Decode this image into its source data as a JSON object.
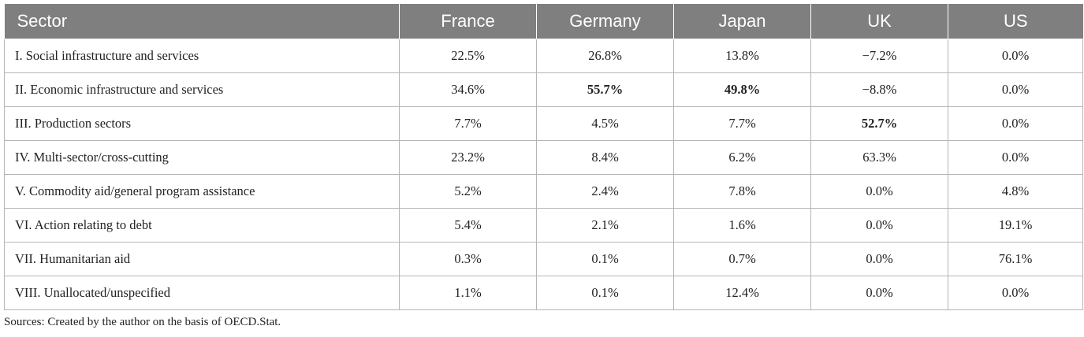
{
  "table": {
    "headers": [
      "Sector",
      "France",
      "Germany",
      "Japan",
      "UK",
      "US"
    ],
    "rows": [
      {
        "sector": "I. Social infrastructure and services",
        "values": [
          "22.5%",
          "26.8%",
          "13.8%",
          "−7.2%",
          "0.0%"
        ],
        "bold": []
      },
      {
        "sector": "II. Economic infrastructure and services",
        "values": [
          "34.6%",
          "55.7%",
          "49.8%",
          "−8.8%",
          "0.0%"
        ],
        "bold": [
          "Germany",
          "Japan"
        ]
      },
      {
        "sector": "III. Production sectors",
        "values": [
          "7.7%",
          "4.5%",
          "7.7%",
          "52.7%",
          "0.0%"
        ],
        "bold": [
          "UK"
        ]
      },
      {
        "sector": "IV. Multi-sector/cross-cutting",
        "values": [
          "23.2%",
          "8.4%",
          "6.2%",
          "63.3%",
          "0.0%"
        ],
        "bold": []
      },
      {
        "sector": "V. Commodity aid/general program assistance",
        "values": [
          "5.2%",
          "2.4%",
          "7.8%",
          "0.0%",
          "4.8%"
        ],
        "bold": []
      },
      {
        "sector": "VI. Action relating to debt",
        "values": [
          "5.4%",
          "2.1%",
          "1.6%",
          "0.0%",
          "19.1%"
        ],
        "bold": []
      },
      {
        "sector": "VII. Humanitarian aid",
        "values": [
          "0.3%",
          "0.1%",
          "0.7%",
          "0.0%",
          "76.1%"
        ],
        "bold": []
      },
      {
        "sector": "VIII. Unallocated/unspecified",
        "values": [
          "1.1%",
          "0.1%",
          "12.4%",
          "0.0%",
          "0.0%"
        ],
        "bold": []
      }
    ]
  },
  "source_note": "Sources: Created by the author on the basis of OECD.Stat.",
  "colors": {
    "header_background": "#7f7f7f",
    "header_text": "#ffffff",
    "grid_line": "#b5b5b5"
  }
}
